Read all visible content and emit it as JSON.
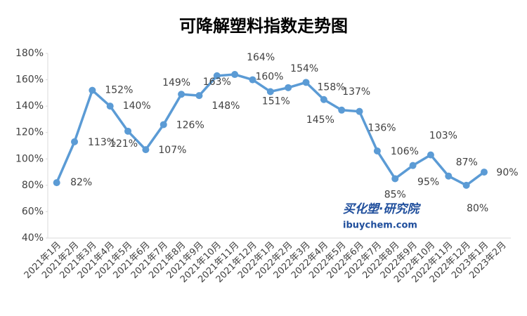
{
  "chart_data": {
    "type": "line",
    "title": "可降解塑料指数走势图",
    "categories": [
      "2021年1月",
      "2021年2月",
      "2021年3月",
      "2021年4月",
      "2021年5月",
      "2021年6月",
      "2021年7月",
      "2021年8月",
      "2021年9月",
      "2021年10月",
      "2021年11月",
      "2021年12月",
      "2022年1月",
      "2022年2月",
      "2022年3月",
      "2022年4月",
      "2022年5月",
      "2022年6月",
      "2022年7月",
      "2022年8月",
      "2022年9月",
      "2022年10月",
      "2022年11月",
      "2022年12月",
      "2023年1月",
      "2023年2月"
    ],
    "values": [
      82,
      113,
      152,
      140,
      121,
      107,
      126,
      149,
      148,
      163,
      164,
      160,
      151,
      154,
      158,
      145,
      137,
      136,
      106,
      85,
      95,
      103,
      87,
      80,
      90,
      null
    ],
    "value_labels": [
      "82%",
      "113%",
      "152%",
      "140%",
      "121%",
      "107%",
      "126%",
      "149%",
      "148%",
      "163%",
      "164%",
      "160%",
      "151%",
      "154%",
      "158%",
      "145%",
      "137%",
      "136%",
      "106%",
      "85%",
      "95%",
      "103%",
      "87%",
      "80%",
      "90%",
      null
    ],
    "color": "#5b9bd5",
    "ylim": [
      40,
      180
    ],
    "yticks": [
      {
        "value": 40,
        "label": "40%"
      },
      {
        "value": 60,
        "label": "60%"
      },
      {
        "value": 80,
        "label": "80%"
      },
      {
        "value": 100,
        "label": "100%"
      },
      {
        "value": 120,
        "label": "120%"
      },
      {
        "value": 140,
        "label": "140%"
      },
      {
        "value": 160,
        "label": "160%"
      },
      {
        "value": 180,
        "label": "180%"
      }
    ],
    "grid": false,
    "watermark": {
      "brand": "买化塑·研究院",
      "site": "ibuychem.com"
    }
  }
}
